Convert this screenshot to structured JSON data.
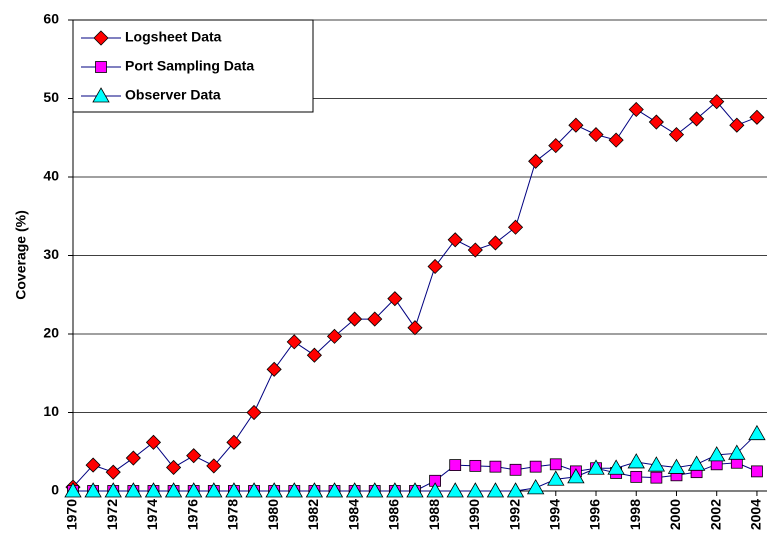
{
  "chart_data": {
    "type": "line",
    "y_label": "Coverage (%)",
    "x": [
      1970,
      1971,
      1972,
      1973,
      1974,
      1975,
      1976,
      1977,
      1978,
      1979,
      1980,
      1981,
      1982,
      1983,
      1984,
      1985,
      1986,
      1987,
      1988,
      1989,
      1990,
      1991,
      1992,
      1993,
      1994,
      1995,
      1996,
      1997,
      1998,
      1999,
      2000,
      2001,
      2002,
      2003,
      2004
    ],
    "xlim": [
      1970,
      2004.5
    ],
    "xticks": [
      1970,
      1972,
      1974,
      1976,
      1978,
      1980,
      1982,
      1984,
      1986,
      1988,
      1990,
      1992,
      1994,
      1996,
      1998,
      2000,
      2002,
      2004
    ],
    "ylim": [
      0,
      60
    ],
    "yticks": [
      0,
      10,
      20,
      30,
      40,
      50,
      60
    ],
    "grid": true,
    "legend": "top-left",
    "line_color": "#000080",
    "series": [
      {
        "name": "Logsheet Data",
        "color": "#ff0000",
        "marker": "diamond",
        "values": [
          0.5,
          3.3,
          2.4,
          4.2,
          6.2,
          3.0,
          4.5,
          3.2,
          6.2,
          10.0,
          15.5,
          19.0,
          17.3,
          19.7,
          21.9,
          21.9,
          24.5,
          20.8,
          28.6,
          32.0,
          30.7,
          31.6,
          33.6,
          42.0,
          44.0,
          46.6,
          45.4,
          44.7,
          48.6,
          47.0,
          45.4,
          47.4,
          49.6,
          46.6,
          47.6
        ]
      },
      {
        "name": "Port Sampling Data",
        "color": "#ff00ff",
        "marker": "square",
        "values": [
          0,
          0,
          0,
          0,
          0,
          0,
          0,
          0,
          0,
          0,
          0,
          0,
          0,
          0,
          0,
          0,
          0,
          0,
          1.3,
          3.3,
          3.2,
          3.1,
          2.7,
          3.1,
          3.4,
          2.5,
          2.9,
          2.3,
          1.8,
          1.7,
          2.0,
          2.4,
          3.4,
          3.6,
          2.5
        ]
      },
      {
        "name": "Observer Data",
        "color": "#00ffff",
        "marker": "triangle",
        "values": [
          0,
          0,
          0,
          0,
          0,
          0,
          0,
          0,
          0,
          0,
          0,
          0,
          0,
          0,
          0,
          0,
          0,
          0,
          0,
          0,
          0,
          0,
          0,
          0.4,
          1.5,
          1.8,
          2.9,
          2.9,
          3.7,
          3.3,
          3.0,
          3.4,
          4.6,
          4.8,
          7.3
        ]
      }
    ]
  }
}
